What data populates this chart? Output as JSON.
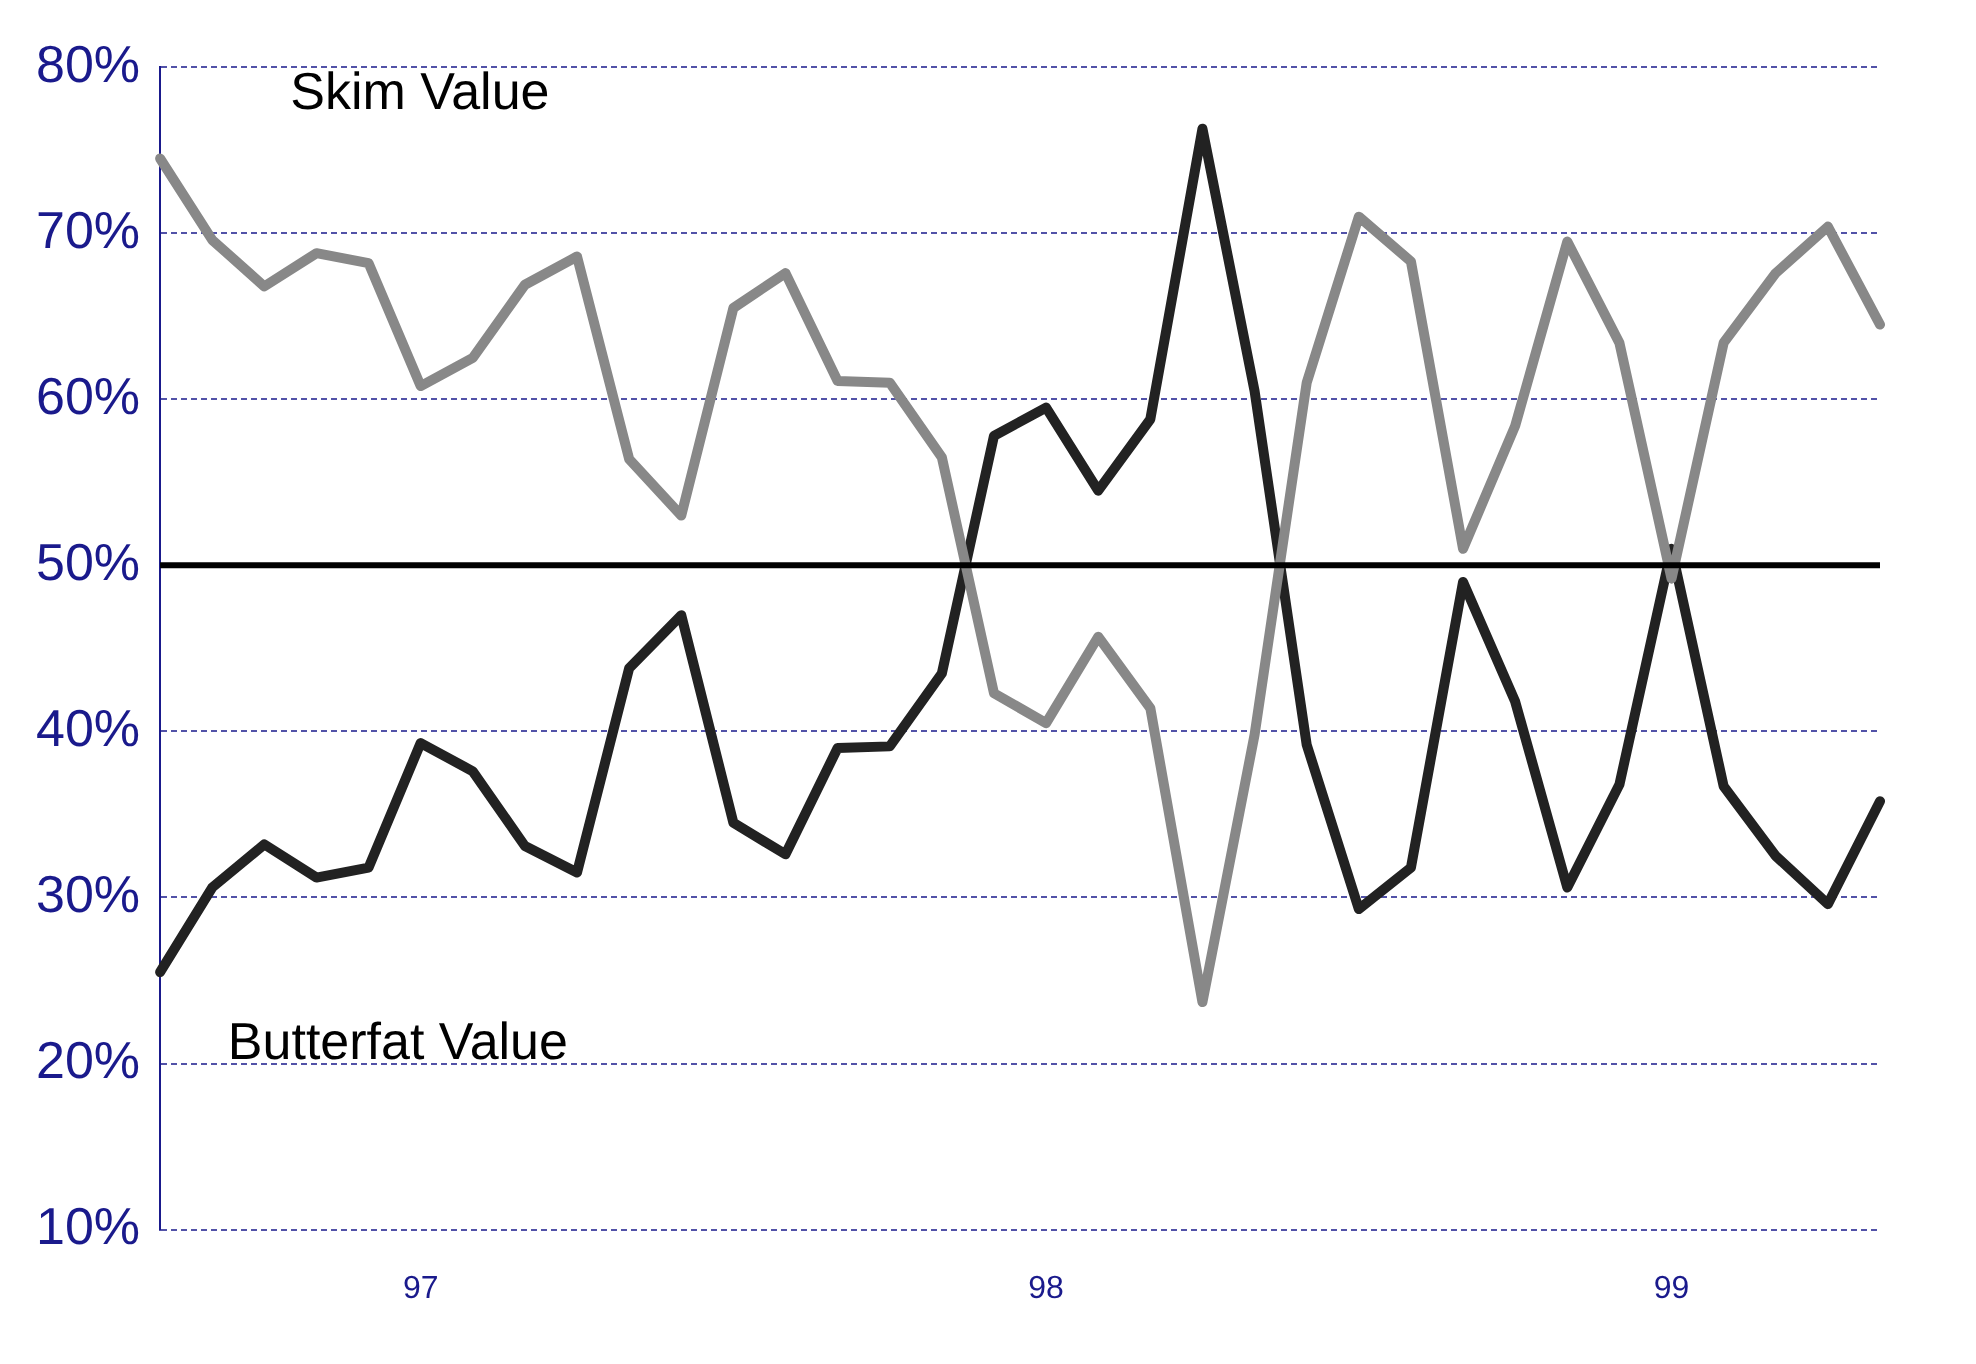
{
  "chart_data": {
    "type": "line",
    "categories": [
      null,
      null,
      null,
      null,
      null,
      "97",
      null,
      null,
      null,
      null,
      null,
      null,
      null,
      null,
      null,
      null,
      null,
      "98",
      null,
      null,
      null,
      null,
      null,
      null,
      null,
      null,
      null,
      null,
      null,
      "99",
      null,
      null,
      null,
      null
    ],
    "series": [
      {
        "name": "Skim Value",
        "color": "#888888",
        "values": [
          74.5,
          69.6,
          66.8,
          68.8,
          68.2,
          60.8,
          62.5,
          66.9,
          68.6,
          56.4,
          53.0,
          65.5,
          67.6,
          61.1,
          61.0,
          56.5,
          42.3,
          40.5,
          45.7,
          41.4,
          23.7,
          39.8,
          61.0,
          71.0,
          68.3,
          51.0,
          58.4,
          69.5,
          63.4,
          49.2,
          63.4,
          67.6,
          70.4,
          64.5
        ]
      },
      {
        "name": "Butterfat Value",
        "color": "#222222",
        "values": [
          25.5,
          30.6,
          33.2,
          31.2,
          31.8,
          39.3,
          37.6,
          33.1,
          31.5,
          43.8,
          47.0,
          34.5,
          32.6,
          39.0,
          39.1,
          43.5,
          57.8,
          59.5,
          54.5,
          58.8,
          76.3,
          60.5,
          39.2,
          29.3,
          31.8,
          49.0,
          41.8,
          30.6,
          36.8,
          51.0,
          36.7,
          32.5,
          29.6,
          35.8
        ]
      }
    ],
    "ylim": [
      10,
      80
    ],
    "yticks": [
      {
        "value": 10,
        "label": "10%"
      },
      {
        "value": 20,
        "label": "20%"
      },
      {
        "value": 30,
        "label": "30%"
      },
      {
        "value": 40,
        "label": "40%"
      },
      {
        "value": 50,
        "label": "50%"
      },
      {
        "value": 60,
        "label": "60%"
      },
      {
        "value": 70,
        "label": "70%"
      },
      {
        "value": 80,
        "label": "80%"
      }
    ],
    "ref_lines": [
      {
        "axis": "y",
        "value": 50,
        "label": null,
        "color": "#000000"
      }
    ],
    "grid": "y",
    "legend": false,
    "marker": "none",
    "line_style": "solid"
  }
}
